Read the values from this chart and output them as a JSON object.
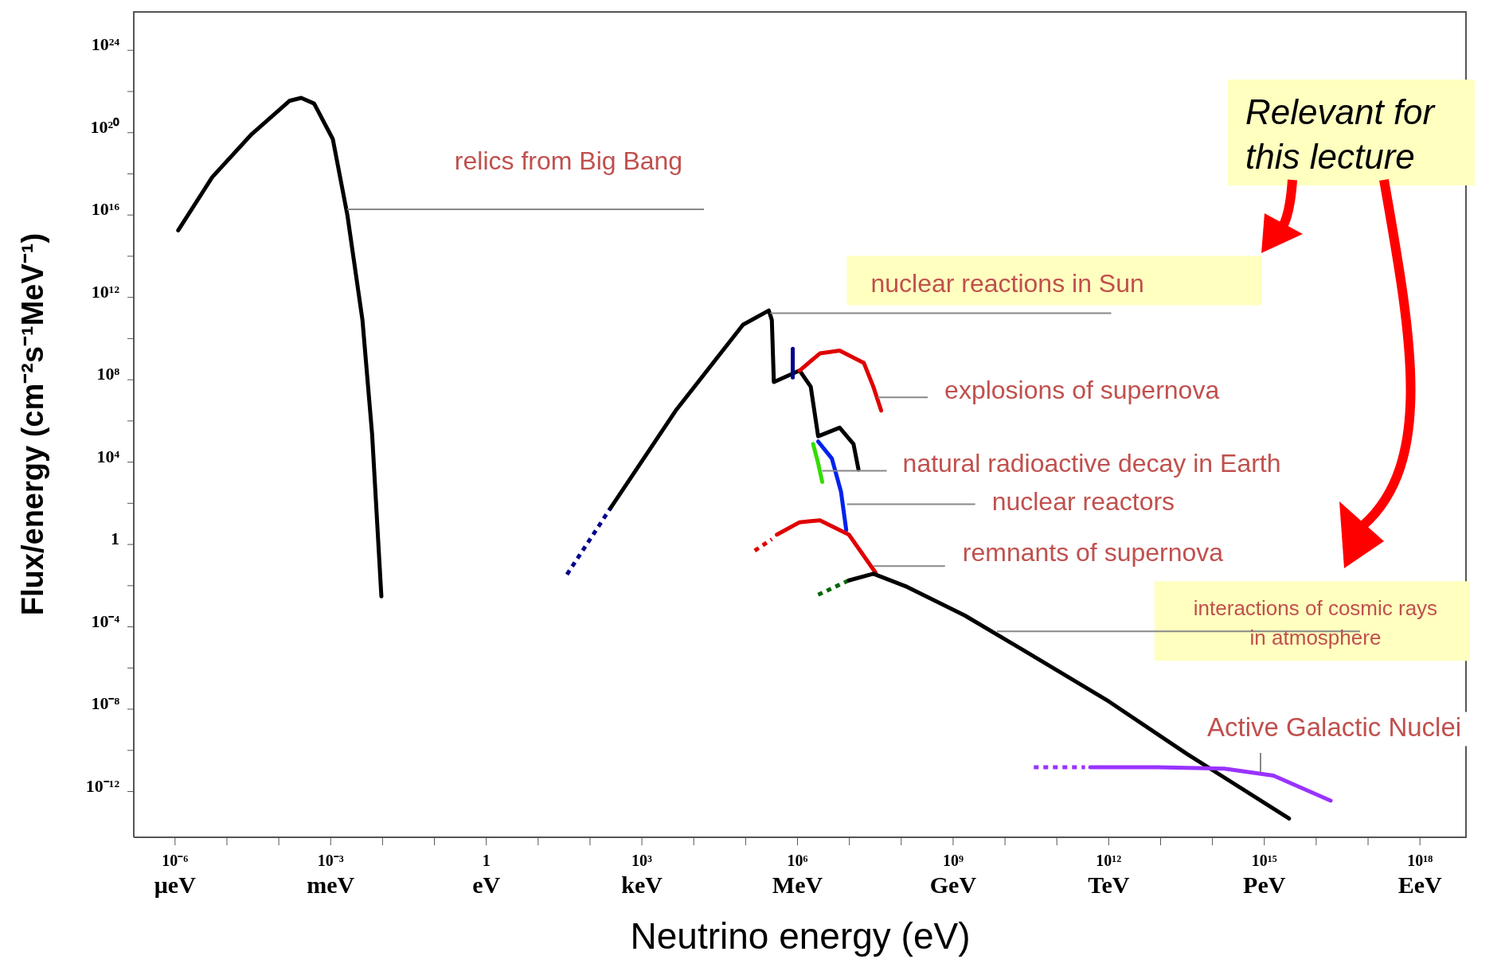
{
  "chart_data": {
    "type": "line",
    "log": "xy",
    "marker": "none",
    "xlabel": "Neutrino energy (eV)",
    "ylabel": "Flux/energy (cm⁻²s⁻¹MeV⁻¹)",
    "xlim": [
      1.6e-07,
      8e+18
    ],
    "ylim": [
      6e-15,
      8e+25
    ],
    "xticks": [
      {
        "value": 1e-06,
        "label": "10⁻⁶"
      },
      {
        "value": 1e-05,
        "label": null
      },
      {
        "value": 0.0001,
        "label": null
      },
      {
        "value": 0.001,
        "label": "10⁻³"
      },
      {
        "value": 0.01,
        "label": null
      },
      {
        "value": 0.1,
        "label": null
      },
      1,
      {
        "value": 10.0,
        "label": null
      },
      {
        "value": 100.0,
        "label": null
      },
      {
        "value": 1000.0,
        "label": "10³"
      },
      {
        "value": 10000.0,
        "label": null
      },
      {
        "value": 100000.0,
        "label": null
      },
      {
        "value": 1000000.0,
        "label": "10⁶"
      },
      {
        "value": 10000000.0,
        "label": null
      },
      {
        "value": 100000000.0,
        "label": null
      },
      {
        "value": 1000000000.0,
        "label": "10⁹"
      },
      {
        "value": 10000000000.0,
        "label": null
      },
      {
        "value": 100000000000.0,
        "label": null
      },
      {
        "value": 1000000000000.0,
        "label": "10¹²"
      },
      {
        "value": 10000000000000.0,
        "label": null
      },
      {
        "value": 100000000000000.0,
        "label": null
      },
      {
        "value": 1000000000000000.0,
        "label": "10¹⁵"
      },
      {
        "value": 1e+16,
        "label": null
      },
      {
        "value": 1e+17,
        "label": null
      },
      {
        "value": 1e+18,
        "label": "10¹⁸"
      }
    ],
    "yticks": [
      {
        "value": 1e-12,
        "label": "10⁻¹²"
      },
      {
        "value": 1e-10,
        "label": null
      },
      {
        "value": 1e-08,
        "label": "10⁻⁸"
      },
      {
        "value": 1e-06,
        "label": null
      },
      {
        "value": 0.0001,
        "label": "10⁻⁴"
      },
      {
        "value": 0.01,
        "label": null
      },
      {
        "value": 1,
        "label": "1"
      },
      {
        "value": 100.0,
        "label": null
      },
      {
        "value": 10000.0,
        "label": "10⁴"
      },
      {
        "value": 1000000.0,
        "label": null
      },
      {
        "value": 100000000.0,
        "label": "10⁸"
      },
      {
        "value": 10000000000.0,
        "label": null
      },
      {
        "value": 1000000000000.0,
        "label": "10¹²"
      },
      {
        "value": 100000000000000.0,
        "label": null
      },
      {
        "value": 1e+16,
        "label": "10¹⁶"
      },
      {
        "value": 1e+18,
        "label": null
      },
      {
        "value": 1e+20,
        "label": "10²⁰"
      },
      {
        "value": 1e+22,
        "label": null
      },
      {
        "value": 1e+24,
        "label": "10²⁴"
      }
    ],
    "series": [
      {
        "color": "#000000",
        "line_style": "solid",
        "x": [
          1.15e-06,
          5.2e-06,
          3e-05,
          0.00016,
          0.00027,
          0.00048,
          0.0011,
          0.0021,
          0.0041,
          0.0063,
          0.0095
        ],
        "values": [
          1800000000000000.0,
          6.9e+17,
          8.5e+19,
          3.5e+21,
          4.9e+21,
          2.6e+21,
          4.9e+19,
          1e+16,
          80000000000.0,
          220000.0,
          0.003
        ]
      },
      {
        "color": "#00008b",
        "line_style": "dotted",
        "x": [
          36,
          250
        ],
        "values": [
          0.035,
          60
        ]
      },
      {
        "color": "#000000",
        "line_style": "solid",
        "x": [
          250,
          4500,
          89000.0,
          280000.0,
          320000.0,
          350000.0,
          1100000.0,
          1800000.0,
          2500000.0,
          6500000.0,
          12000000.0,
          15000000.0
        ],
        "values": [
          60,
          3200000.0,
          47000000000.0,
          230000000000.0,
          80000000000.0,
          78000000.0,
          280000000.0,
          46000000.0,
          180000.0,
          470000.0,
          76000.0,
          4300.0
        ]
      },
      {
        "color": "#00008b",
        "line_style": "solid",
        "x": [
          810000.0,
          810000.0
        ],
        "values": [
          3200000000.0,
          130000000.0
        ]
      },
      {
        "color": "#e00000",
        "line_style": "solid",
        "x": [
          1100000.0,
          2700000.0,
          6500000.0,
          19000000.0,
          29000000.0,
          41000000.0
        ],
        "values": [
          280000000.0,
          1900000000.0,
          2600000000.0,
          660000000.0,
          46000000.0,
          3200000.0
        ]
      },
      {
        "color": "#33dd00",
        "line_style": "solid",
        "x": [
          2000000.0,
          2500000.0,
          3000000.0
        ],
        "values": [
          76000.0,
          8900.0,
          1100.0
        ]
      },
      {
        "color": "#0022ee",
        "line_style": "solid",
        "x": [
          2500000.0,
          4600000.0,
          6900000.0,
          8700000.0
        ],
        "values": [
          100000.0,
          15000.0,
          360,
          5.1
        ]
      },
      {
        "color": "#e00000",
        "line_style": "dotted",
        "x": [
          150000.0,
          320000.0
        ],
        "values": [
          0.5,
          1.8
        ]
      },
      {
        "color": "#e00000",
        "line_style": "solid",
        "x": [
          400000.0,
          1100000.0,
          2700000.0,
          9800000.0,
          32000000.0
        ],
        "values": [
          3,
          12,
          15,
          3,
          0.043
        ]
      },
      {
        "color": "#006600",
        "line_style": "dotted",
        "x": [
          2500000.0,
          9800000.0
        ],
        "values": [
          0.0036,
          0.018
        ]
      },
      {
        "color": "#000000",
        "line_style": "solid",
        "x": [
          9800000.0,
          29000000.0,
          130000000.0,
          1700000000.0,
          42000000000.0,
          1000000000000.0,
          32000000000000.0,
          3000000000000000.0
        ],
        "values": [
          0.018,
          0.038,
          0.0087,
          0.00035,
          2.9e-06,
          2.4e-08,
          6.8e-11,
          4.9e-14
        ]
      },
      {
        "color": "#9933ff",
        "line_style": "dotted",
        "x": [
          36000000000.0,
          350000000000.0
        ],
        "values": [
          1.5e-11,
          1.5e-11
        ]
      },
      {
        "color": "#9933ff",
        "line_style": "solid",
        "x": [
          440000000000.0,
          8700000000000.0,
          170000000000000.0,
          1500000000000000.0,
          1.9e+16
        ],
        "values": [
          1.5e-11,
          1.5e-11,
          1.3e-11,
          5.9e-12,
          3.6e-13
        ]
      }
    ],
    "annotations": [
      "μeV",
      "meV",
      "eV",
      "keV",
      "MeV",
      "GeV",
      "TeV",
      "PeV",
      "EeV",
      "relics from Big Bang",
      {
        "text": "nuclear reactions in Sun",
        "x": 300000.0,
        "y": 170000000000.0
      },
      {
        "text": "explosions of supernova",
        "x": 35000000.0,
        "y": 14000000.0
      },
      {
        "text": "natural radioactive decay in Earth",
        "x": 3000000.0,
        "y": 3800.0
      },
      {
        "text": "nuclear reactors",
        "x": 9000000.0,
        "y": 90
      },
      {
        "text": "remnants of supernova",
        "x": 29000000.0,
        "y": 0.09
      },
      {
        "text": "interactions of cosmic rays\nin atmosphere",
        "x": 7000000000.0,
        "y": 6e-05
      },
      "Active Galactic Nuclei",
      "Relevant for\nthis lecture"
    ]
  }
}
